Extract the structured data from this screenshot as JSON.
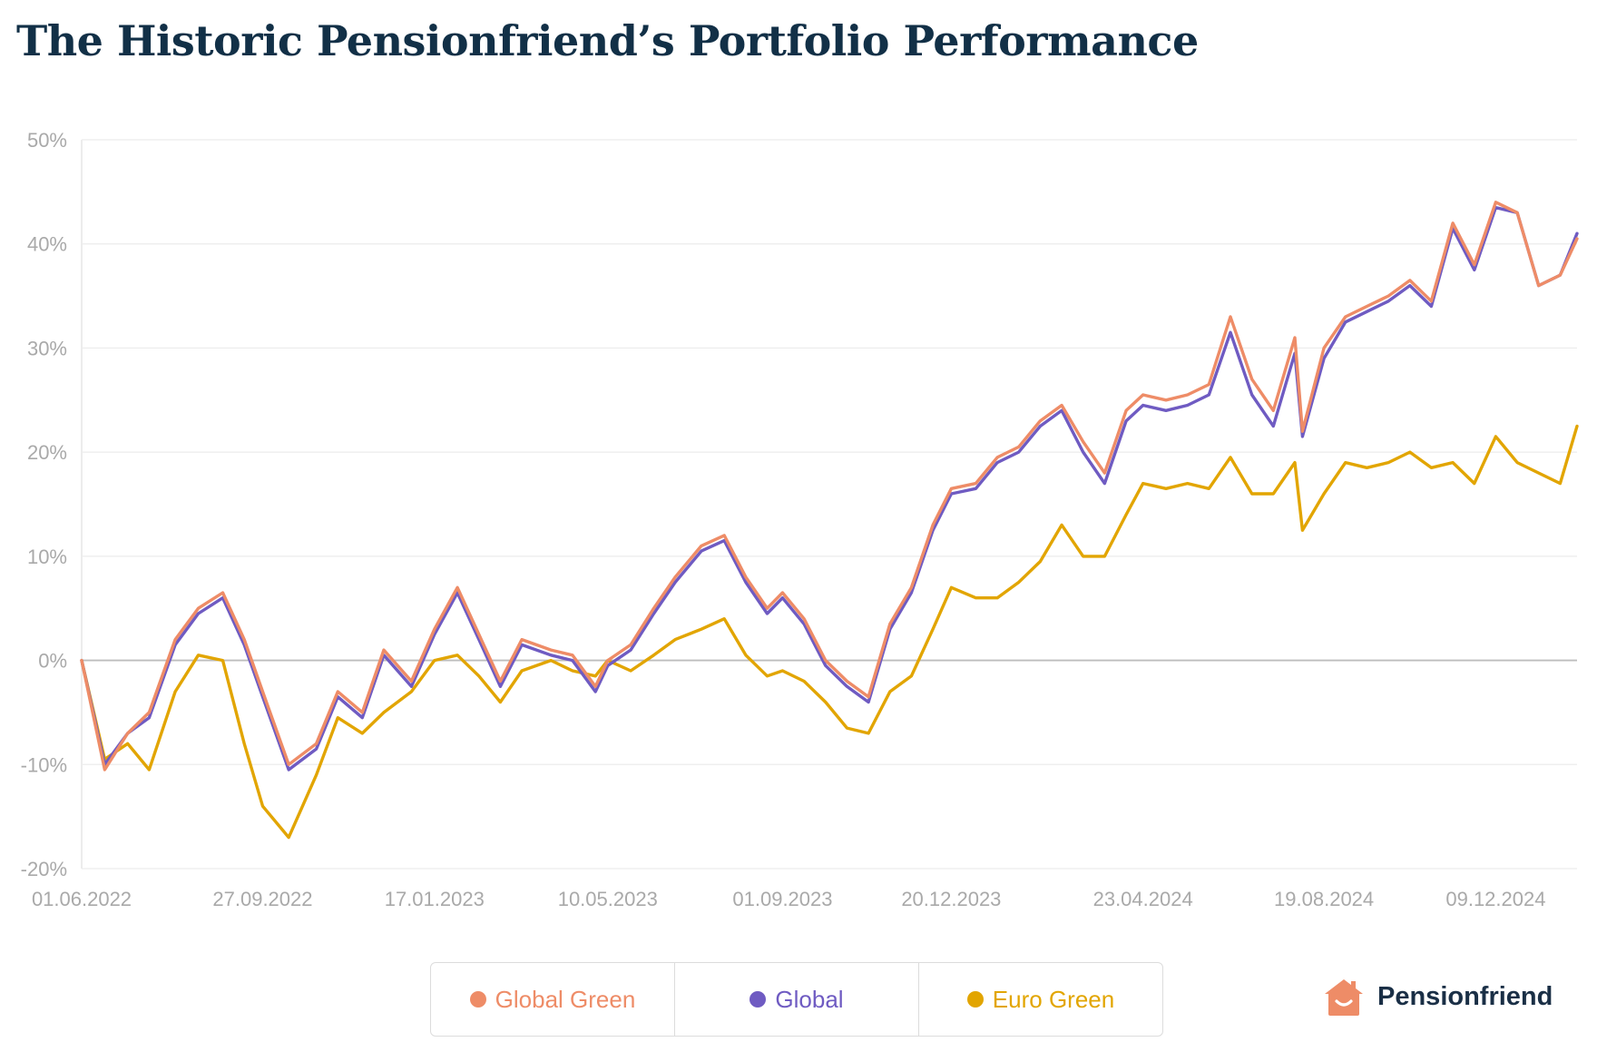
{
  "title": "The Historic Pensionfriend’s Portfolio Performance",
  "brand": {
    "name": "Pensionfriend",
    "logo_icon": "house-smile-icon"
  },
  "legend": [
    {
      "label": "Global Green",
      "color": "#ee8c67"
    },
    {
      "label": "Global",
      "color": "#6f5bc2"
    },
    {
      "label": "Euro Green",
      "color": "#e2a500"
    }
  ],
  "chart_data": {
    "type": "line",
    "title": "The Historic Pensionfriend’s Portfolio Performance",
    "xlabel": "",
    "ylabel": "",
    "y_unit": "%",
    "ylim": [
      -20,
      50
    ],
    "y_ticks": [
      {
        "value": 50,
        "label": "50%"
      },
      {
        "value": 40,
        "label": "40%"
      },
      {
        "value": 30,
        "label": "30%"
      },
      {
        "value": 20,
        "label": "20%"
      },
      {
        "value": 10,
        "label": "10%"
      },
      {
        "value": 0,
        "label": "0%"
      },
      {
        "value": -10,
        "label": "-10%"
      },
      {
        "value": -20,
        "label": "-20%"
      }
    ],
    "x_range": [
      "2022-06-01",
      "2025-01-31"
    ],
    "x_ticks": [
      {
        "date": "2022-06-01",
        "label": "01.06.2022"
      },
      {
        "date": "2022-09-27",
        "label": "27.09.2022"
      },
      {
        "date": "2023-01-17",
        "label": "17.01.2023"
      },
      {
        "date": "2023-05-10",
        "label": "10.05.2023"
      },
      {
        "date": "2023-09-01",
        "label": "01.09.2023"
      },
      {
        "date": "2023-12-20",
        "label": "20.12.2023"
      },
      {
        "date": "2024-04-23",
        "label": "23.04.2024"
      },
      {
        "date": "2024-08-19",
        "label": "19.08.2024"
      },
      {
        "date": "2024-12-09",
        "label": "09.12.2024"
      }
    ],
    "grid": true,
    "legend_position": "bottom",
    "x": [
      "2022-06-01",
      "2022-06-16",
      "2022-07-01",
      "2022-07-15",
      "2022-08-01",
      "2022-08-16",
      "2022-09-01",
      "2022-09-15",
      "2022-09-27",
      "2022-10-14",
      "2022-11-01",
      "2022-11-15",
      "2022-12-01",
      "2022-12-15",
      "2023-01-02",
      "2023-01-17",
      "2023-02-01",
      "2023-02-15",
      "2023-03-01",
      "2023-03-15",
      "2023-04-03",
      "2023-04-17",
      "2023-05-02",
      "2023-05-10",
      "2023-05-25",
      "2023-06-09",
      "2023-06-23",
      "2023-07-10",
      "2023-07-25",
      "2023-08-08",
      "2023-08-22",
      "2023-09-01",
      "2023-09-15",
      "2023-09-29",
      "2023-10-13",
      "2023-10-27",
      "2023-11-10",
      "2023-11-24",
      "2023-12-08",
      "2023-12-20",
      "2024-01-05",
      "2024-01-19",
      "2024-02-02",
      "2024-02-16",
      "2024-03-01",
      "2024-03-15",
      "2024-03-29",
      "2024-04-12",
      "2024-04-23",
      "2024-05-08",
      "2024-05-22",
      "2024-06-05",
      "2024-06-19",
      "2024-07-03",
      "2024-07-17",
      "2024-07-31",
      "2024-08-05",
      "2024-08-19",
      "2024-09-02",
      "2024-09-16",
      "2024-09-30",
      "2024-10-14",
      "2024-10-28",
      "2024-11-11",
      "2024-11-25",
      "2024-12-09",
      "2024-12-23",
      "2025-01-06",
      "2025-01-20",
      "2025-01-31"
    ],
    "series": [
      {
        "name": "Global Green",
        "color": "#ee8c67",
        "values": [
          0,
          -10.5,
          -7,
          -5,
          2,
          5,
          6.5,
          2,
          -3,
          -10,
          -8,
          -3,
          -5,
          1,
          -2,
          3,
          7,
          2.5,
          -2,
          2,
          1,
          0.5,
          -2.5,
          0,
          1.5,
          5,
          8,
          11,
          12,
          8,
          5,
          6.5,
          4,
          0,
          -2,
          -3.5,
          3.5,
          7,
          13,
          16.5,
          17,
          19.5,
          20.5,
          23,
          24.5,
          21,
          18,
          24,
          25.5,
          25,
          25.5,
          26.5,
          33,
          27,
          24,
          31,
          22,
          30,
          33,
          34,
          35,
          36.5,
          34.5,
          42,
          38,
          44,
          43,
          36,
          37,
          40.5
        ]
      },
      {
        "name": "Global",
        "color": "#6f5bc2",
        "values": [
          0,
          -10,
          -7,
          -5.5,
          1.5,
          4.5,
          6,
          1.5,
          -3.5,
          -10.5,
          -8.5,
          -3.5,
          -5.5,
          0.5,
          -2.5,
          2.5,
          6.5,
          2,
          -2.5,
          1.5,
          0.5,
          0,
          -3,
          -0.5,
          1,
          4.5,
          7.5,
          10.5,
          11.5,
          7.5,
          4.5,
          6,
          3.5,
          -0.5,
          -2.5,
          -4,
          3,
          6.5,
          12.5,
          16,
          16.5,
          19,
          20,
          22.5,
          24,
          20,
          17,
          23,
          24.5,
          24,
          24.5,
          25.5,
          31.5,
          25.5,
          22.5,
          29.5,
          21.5,
          29,
          32.5,
          33.5,
          34.5,
          36,
          34,
          41.5,
          37.5,
          43.5,
          43,
          36,
          37,
          41
        ]
      },
      {
        "name": "Euro Green",
        "color": "#e2a500",
        "values": [
          0,
          -9.5,
          -8,
          -10.5,
          -3,
          0.5,
          0,
          -8,
          -14,
          -17,
          -11,
          -5.5,
          -7,
          -5,
          -3,
          0,
          0.5,
          -1.5,
          -4,
          -1,
          0,
          -1,
          -1.5,
          0,
          -1,
          0.5,
          2,
          3,
          4,
          0.5,
          -1.5,
          -1,
          -2,
          -4,
          -6.5,
          -7,
          -3,
          -1.5,
          3,
          7,
          6,
          6,
          7.5,
          9.5,
          13,
          10,
          10,
          14,
          17,
          16.5,
          17,
          16.5,
          19.5,
          16,
          16,
          19,
          12.5,
          16,
          19,
          18.5,
          19,
          20,
          18.5,
          19,
          17,
          21.5,
          19,
          18,
          17,
          22.5
        ]
      }
    ]
  }
}
